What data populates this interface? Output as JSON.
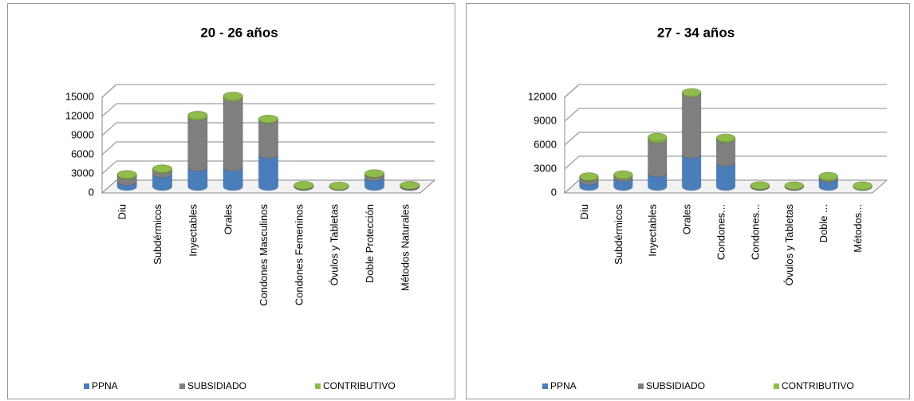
{
  "chart_data": [
    {
      "type": "bar",
      "stacked": true,
      "title": "20 - 26 años",
      "categories": [
        "Diu",
        "Subdérmicos",
        "Inyectables",
        "Orales",
        "Condones Masculinos",
        "Condones Femeninos",
        "Óvulos y Tabletas",
        "Doble Protección",
        "Métodos Naturales"
      ],
      "series": [
        {
          "name": "PPNA",
          "color": "#4a7ebb",
          "values": [
            800,
            2000,
            3000,
            3000,
            5000,
            50,
            20,
            1500,
            50
          ]
        },
        {
          "name": "SUBSIDIADO",
          "color": "#7f7f7f",
          "values": [
            1000,
            700,
            8000,
            11000,
            5500,
            100,
            50,
            500,
            150
          ]
        },
        {
          "name": "CONTRIBUTIVO",
          "color": "#8fbc4a",
          "values": [
            100,
            100,
            200,
            200,
            100,
            50,
            30,
            50,
            10
          ]
        }
      ],
      "ylim": [
        0,
        15000
      ],
      "yticks": [
        0,
        3000,
        6000,
        9000,
        12000,
        15000
      ],
      "grid": true,
      "legend": "bottom"
    },
    {
      "type": "bar",
      "stacked": true,
      "title": "27 - 34 años",
      "categories": [
        "Diu",
        "Subdérmicos",
        "Inyectables",
        "Orales",
        "Condones...",
        "Condones...",
        "Óvulos y Tabletas",
        "Doble ...",
        "Métodos..."
      ],
      "series": [
        {
          "name": "PPNA",
          "color": "#4a7ebb",
          "values": [
            700,
            1100,
            1700,
            4000,
            3000,
            20,
            20,
            1000,
            10
          ]
        },
        {
          "name": "SUBSIDIADO",
          "color": "#7f7f7f",
          "values": [
            500,
            300,
            4300,
            7700,
            3000,
            100,
            80,
            200,
            20
          ]
        },
        {
          "name": "CONTRIBUTIVO",
          "color": "#8fbc4a",
          "values": [
            50,
            100,
            200,
            100,
            100,
            10,
            10,
            100,
            80
          ]
        }
      ],
      "ylim": [
        0,
        12000
      ],
      "yticks": [
        0,
        3000,
        6000,
        9000,
        12000
      ],
      "grid": true,
      "legend": "bottom"
    }
  ]
}
